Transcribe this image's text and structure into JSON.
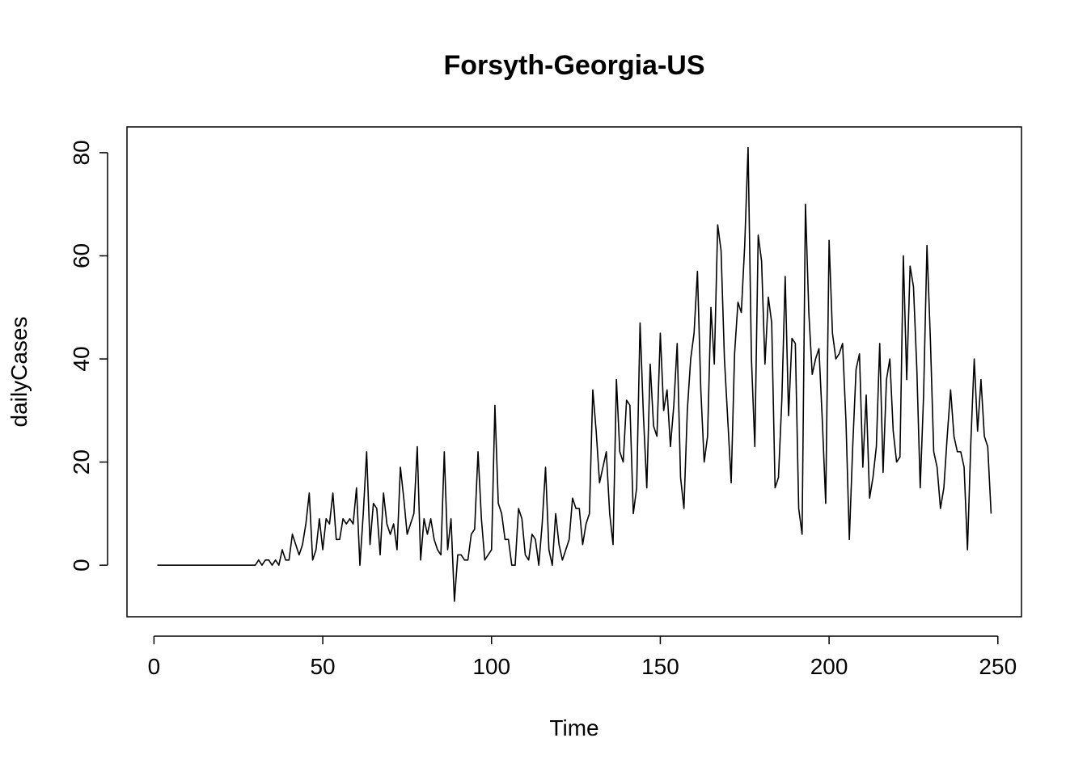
{
  "chart_data": {
    "type": "line",
    "title": "Forsyth-Georgia-US",
    "xlabel": "Time",
    "ylabel": "dailyCases",
    "xlim": [
      -8,
      257
    ],
    "ylim": [
      -10,
      85
    ],
    "xticks": [
      0,
      50,
      100,
      150,
      200,
      250
    ],
    "yticks": [
      0,
      20,
      40,
      60,
      80
    ],
    "grid": false,
    "legend": "none",
    "series": [
      {
        "values": [
          0,
          0,
          0,
          0,
          0,
          0,
          0,
          0,
          0,
          0,
          0,
          0,
          0,
          0,
          0,
          0,
          0,
          0,
          0,
          0,
          0,
          0,
          0,
          0,
          0,
          0,
          0,
          0,
          0,
          0,
          1,
          0,
          1,
          1,
          0,
          1,
          0,
          3,
          1,
          1,
          6,
          4,
          2,
          4,
          8,
          14,
          1,
          3,
          9,
          3,
          9,
          8,
          14,
          5,
          5,
          9,
          8,
          9,
          8,
          15,
          0,
          10,
          22,
          4,
          12,
          11,
          2,
          14,
          8,
          6,
          8,
          3,
          19,
          13,
          6,
          8,
          10,
          23,
          1,
          9,
          6,
          9,
          5,
          3,
          2,
          22,
          3,
          9,
          -7,
          2,
          2,
          1,
          1,
          6,
          7,
          22,
          9,
          1,
          2,
          3,
          31,
          12,
          10,
          5,
          5,
          0,
          0,
          11,
          9,
          2,
          1,
          6,
          5,
          0,
          8,
          19,
          3,
          0,
          10,
          4,
          1,
          3,
          5,
          13,
          11,
          11,
          4,
          8,
          10,
          34,
          26,
          16,
          19,
          22,
          10,
          4,
          36,
          22,
          20,
          32,
          31,
          10,
          15,
          47,
          29,
          15,
          39,
          27,
          25,
          45,
          30,
          34,
          23,
          31,
          43,
          17,
          11,
          30,
          40,
          45,
          57,
          34,
          20,
          25,
          50,
          39,
          66,
          61,
          40,
          28,
          16,
          41,
          51,
          49,
          62,
          81,
          40,
          23,
          64,
          59,
          39,
          52,
          47,
          15,
          17,
          32,
          56,
          29,
          44,
          43,
          11,
          6,
          70,
          49,
          37,
          40,
          42,
          28,
          12,
          63,
          45,
          40,
          41,
          43,
          28,
          5,
          23,
          38,
          41,
          19,
          33,
          13,
          17,
          23,
          43,
          18,
          36,
          40,
          26,
          20,
          21,
          60,
          36,
          58,
          54,
          38,
          15,
          33,
          62,
          44,
          22,
          19,
          11,
          15,
          25,
          34,
          25,
          22,
          22,
          19,
          3,
          24,
          40,
          26,
          36,
          25,
          23,
          10
        ]
      }
    ]
  }
}
